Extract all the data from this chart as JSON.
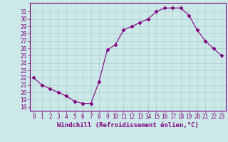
{
  "x": [
    0,
    1,
    2,
    3,
    4,
    5,
    6,
    7,
    8,
    9,
    10,
    11,
    12,
    13,
    14,
    15,
    16,
    17,
    18,
    19,
    20,
    21,
    22,
    23
  ],
  "y": [
    22.0,
    21.0,
    20.5,
    20.0,
    19.5,
    18.8,
    18.5,
    18.5,
    21.5,
    25.8,
    26.5,
    28.5,
    29.0,
    29.5,
    30.0,
    31.0,
    31.5,
    31.5,
    31.5,
    30.5,
    28.5,
    27.0,
    26.0,
    25.0
  ],
  "line_color": "#800080",
  "marker": "D",
  "marker_size": 2.5,
  "bg_color": "#cce8e8",
  "grid_color": "#aad0d0",
  "xlabel": "Windchill (Refroidissement éolien,°C)",
  "xlabel_color": "#800080",
  "ylabel_ticks": [
    18,
    19,
    20,
    21,
    22,
    23,
    24,
    25,
    26,
    27,
    28,
    29,
    30,
    31
  ],
  "xlim": [
    -0.5,
    23.5
  ],
  "ylim": [
    17.5,
    32.2
  ],
  "tick_color": "#800080",
  "spine_color": "#800080",
  "label_fontsize": 6.5,
  "tick_fontsize": 5.5
}
